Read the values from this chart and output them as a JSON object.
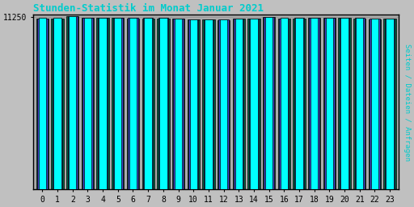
{
  "title": "Stunden-Statistik im Monat Januar 2021",
  "ylabel": "Seiten / Dateien / Anfragen",
  "title_color": "#00CCCC",
  "ylabel_color": "#00CCCC",
  "background_color": "#C0C0C0",
  "plot_bg_color": "#AAAAAA",
  "bar_color_cyan": "#00FFFF",
  "bar_color_blue": "#4444CC",
  "bar_color_green": "#006644",
  "hours": [
    0,
    1,
    2,
    3,
    4,
    5,
    6,
    7,
    8,
    9,
    10,
    11,
    12,
    13,
    14,
    15,
    16,
    17,
    18,
    19,
    20,
    21,
    22,
    23
  ],
  "values_cyan": [
    11180,
    11185,
    11335,
    11230,
    11225,
    11215,
    11205,
    11205,
    11200,
    11155,
    11115,
    11110,
    11100,
    11165,
    11160,
    11268,
    11185,
    11195,
    11215,
    11230,
    11225,
    11200,
    11148,
    11165
  ],
  "values_blue": [
    11168,
    11172,
    11310,
    11215,
    11210,
    11200,
    11190,
    11190,
    11185,
    11140,
    11100,
    11095,
    11085,
    11150,
    11145,
    11250,
    11170,
    11180,
    11200,
    11215,
    11210,
    11185,
    11132,
    11150
  ],
  "values_green": [
    11158,
    11162,
    11295,
    11205,
    11198,
    11188,
    11178,
    11178,
    11172,
    11128,
    11088,
    11083,
    11072,
    11138,
    11132,
    11235,
    11158,
    11168,
    11188,
    11202,
    11196,
    11172,
    11118,
    11138
  ],
  "ytick": 11250,
  "ymin": 0,
  "ymax": 11400,
  "border_color": "#000000"
}
